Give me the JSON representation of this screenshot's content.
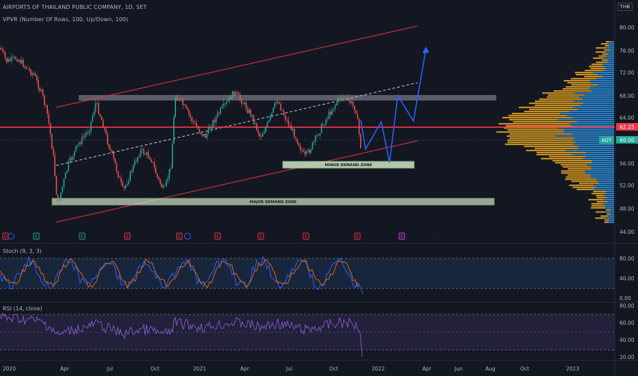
{
  "header": {
    "title": "AIRPORTS OF THAILAND PUBLIC COMPANY, 1D, SET",
    "indicator": "VPVR (Number Of Rows, 100, Up/Down, 100)",
    "currency": "THB"
  },
  "price_axis": {
    "ticks": [
      "80.00",
      "76.00",
      "72.00",
      "68.00",
      "64.00",
      "56.00",
      "52.00",
      "48.00",
      "44.00"
    ],
    "line_label": "62.25",
    "symbol": "AOT",
    "last_price": "60.00"
  },
  "zones": {
    "minor": "MINOR DEMAND ZONE",
    "major": "MAJOR DEMAND ZONE"
  },
  "stoch": {
    "label": "Stoch (9, 3, 3)",
    "ticks": [
      "80.00",
      "40.00",
      "0.00"
    ]
  },
  "rsi": {
    "label": "RSI (14, close)",
    "ticks": [
      "80.00",
      "60.00",
      "40.00",
      "20.00"
    ]
  },
  "time_axis": [
    "2020",
    "Apr",
    "Jul",
    "Oct",
    "2021",
    "Apr",
    "Jul",
    "Oct",
    "2022",
    "Apr",
    "Jun",
    "Aug",
    "Oct",
    "2023"
  ],
  "events": [
    "D",
    "E",
    "E",
    "E",
    "E",
    "E",
    "E",
    "E",
    "E",
    "E"
  ],
  "colors": {
    "background": "#131722",
    "red_line": "#f23645",
    "projection": "#2962ff",
    "volume_up": "#2f8fde",
    "volume_down": "#e0a020",
    "stoch_k": "#2962ff",
    "stoch_d": "#ff6d00",
    "rsi": "#7e57c2"
  }
}
